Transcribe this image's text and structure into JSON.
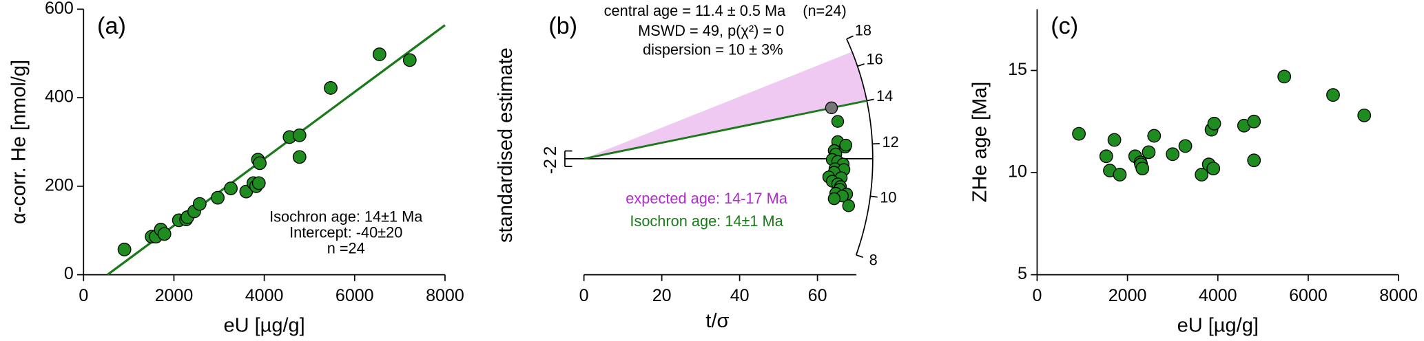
{
  "chart_data": [
    {
      "type": "scatter",
      "label": "(a)",
      "xlabel": "eU [µg/g]",
      "ylabel": "α-corr. He [nmol/g]",
      "xlim": [
        0,
        8000
      ],
      "xticks": [
        0,
        2000,
        4000,
        6000,
        8000
      ],
      "ylim": [
        0,
        600
      ],
      "yticks": [
        0,
        200,
        400,
        600
      ],
      "series": [
        {
          "color": "#1e8c1e",
          "x": [
            905,
            1508,
            1600,
            1710,
            1790,
            2110,
            2270,
            2300,
            2450,
            2570,
            2970,
            3260,
            3600,
            3760,
            3820,
            3880,
            3860,
            3900,
            4560,
            4780,
            4780,
            5470,
            6550,
            7220
          ],
          "values": [
            57,
            86,
            86,
            102,
            92,
            123,
            125,
            130,
            143,
            160,
            174,
            195,
            188,
            207,
            200,
            207,
            260,
            252,
            311,
            315,
            266,
            422,
            498,
            485
          ]
        }
      ],
      "fit": {
        "intercept": -40,
        "slope": 0.0755,
        "color": "#1a7a1a"
      },
      "annotations": [
        "Isochron age: 14±1 Ma",
        "Intercept: -40±20",
        "n =24"
      ]
    },
    {
      "type": "radial",
      "label": "(b)",
      "xlabel": "t/σ",
      "ylabel": "standardised estimate",
      "xlim": [
        0,
        70
      ],
      "xticks": [
        0,
        20,
        40,
        60
      ],
      "yticks": [
        -2,
        2
      ],
      "central_age": 11.4,
      "isochron_age": 14,
      "expected_range": [
        14,
        17
      ],
      "arc_ticks": [
        8,
        10,
        12,
        14,
        16,
        18
      ],
      "wedge_color": "#efc9f1",
      "isochron_color": "#1a7a1a",
      "series": [
        {
          "color": "#1e8c1e",
          "x": [
            65.2,
            65.2,
            67.1,
            64.3,
            64.7,
            63.8,
            65.2,
            66.6,
            64.5,
            66.8,
            64.3,
            62.9,
            66.1,
            63.8,
            65.2,
            65.9,
            65.7,
            64.7,
            67.5,
            66.4,
            64.3,
            68.0,
            67.3
          ],
          "values": [
            9.6,
            4.4,
            3.0,
            2.1,
            1.2,
            -0.2,
            -0.7,
            -1.4,
            -2.6,
            -2.8,
            -3.5,
            -4.7,
            -4.9,
            -5.8,
            -6.5,
            -7.2,
            -7.9,
            -8.9,
            -9.1,
            -9.6,
            -10.3,
            -12.1,
            3.5
          ]
        },
        {
          "color": "#777777",
          "x": [
            63.6
          ],
          "values": [
            13.1
          ]
        }
      ],
      "annotations": [
        {
          "text": "central age = 11.4 ± 0.5 Ma",
          "color": "#000000"
        },
        {
          "text": "(n=24)",
          "color": "#000000"
        },
        {
          "text": "MSWD = 49, p(χ²) = 0",
          "color": "#000000"
        },
        {
          "text": "dispersion = 10 ± 3%",
          "color": "#000000"
        },
        {
          "text": "expected age: 14-17 Ma",
          "color": "#b02ad0"
        },
        {
          "text": "Isochron age: 14±1 Ma",
          "color": "#1a7a1a"
        }
      ]
    },
    {
      "type": "scatter",
      "label": "(c)",
      "xlabel": "eU [µg/g]",
      "ylabel": "ZHe age [Ma]",
      "xlim": [
        0,
        8000
      ],
      "xticks": [
        0,
        2000,
        4000,
        6000,
        8000
      ],
      "ylim": [
        5,
        18
      ],
      "yticks": [
        5,
        10,
        15
      ],
      "series": [
        {
          "color": "#1e8c1e",
          "x": [
            925,
            1530,
            1610,
            1710,
            1830,
            2170,
            2290,
            2300,
            2330,
            2470,
            2590,
            3000,
            3280,
            3640,
            3800,
            3900,
            3860,
            3920,
            4580,
            4800,
            4800,
            5470,
            6550,
            7240
          ],
          "values": [
            11.9,
            10.8,
            10.1,
            11.6,
            9.9,
            10.8,
            10.5,
            10.4,
            10.2,
            11.0,
            11.8,
            10.9,
            11.3,
            9.9,
            10.4,
            10.2,
            12.1,
            12.4,
            12.3,
            12.5,
            10.6,
            14.7,
            13.8,
            12.8
          ]
        }
      ]
    }
  ]
}
